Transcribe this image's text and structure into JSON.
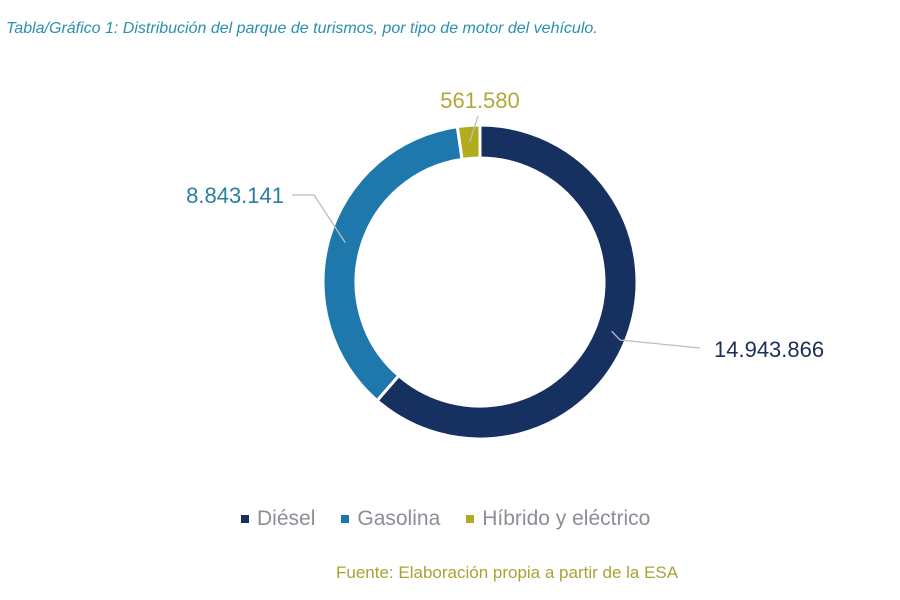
{
  "chart_data": {
    "type": "pie",
    "donut": true,
    "title": "Tabla/Gráfico 1: Distribución del parque de turismos, por tipo de motor del vehículo.",
    "categories": [
      "Diésel",
      "Gasolina",
      "Híbrido y eléctrico"
    ],
    "values": [
      14943866,
      8843141,
      561580
    ],
    "data_labels": [
      "14.943.866",
      "8.843.141",
      "561.580"
    ],
    "colors": [
      "#16305f",
      "#1f78ab",
      "#b0ac1c"
    ],
    "label_colors": [
      "#1d2f55",
      "#2a7f9e",
      "#b0a83a"
    ],
    "legend_position": "bottom",
    "source": "Fuente: Elaboración propia a partir de la ESA"
  }
}
